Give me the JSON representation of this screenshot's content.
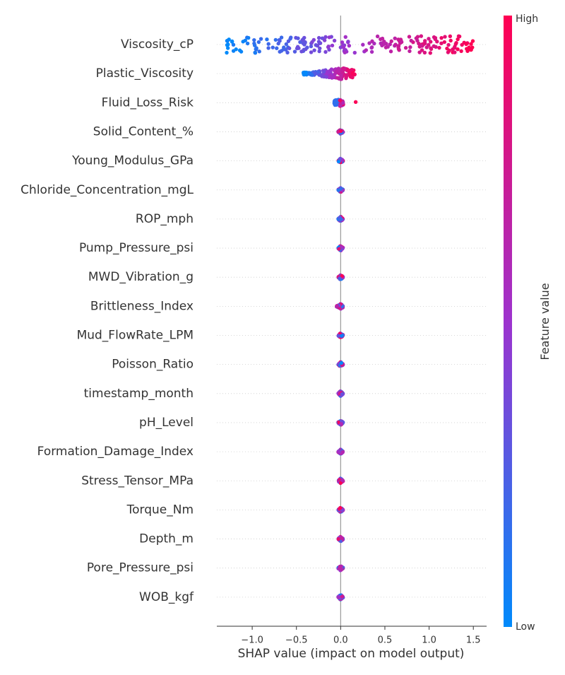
{
  "chart_data": {
    "type": "scatter",
    "subtype": "shap-beeswarm-summary",
    "title": "",
    "xlabel": "SHAP value (impact on model output)",
    "xlim": [
      -1.4,
      1.65
    ],
    "x_ticks": [
      -1.0,
      -0.5,
      0.0,
      0.5,
      1.0,
      1.5
    ],
    "x_tick_labels": [
      "−1.0",
      "−0.5",
      "0.0",
      "0.5",
      "1.0",
      "1.5"
    ],
    "grid": false,
    "zero_line": true,
    "colorbar": {
      "label": "Feature value",
      "high_label": "High",
      "low_label": "Low",
      "low_color": "#008afb",
      "mid_color": "#9d33ce",
      "high_color": "#ff0052",
      "placement": "right"
    },
    "features": [
      {
        "name": "Viscosity_cP",
        "min": -1.3,
        "max": 1.5,
        "spread": 1.0
      },
      {
        "name": "Plastic_Viscosity",
        "min": -0.42,
        "max": 0.18,
        "spread": 0.7
      },
      {
        "name": "Fluid_Loss_Risk",
        "min": -0.09,
        "max": 0.17,
        "spread": 0.45
      },
      {
        "name": "Solid_Content_%",
        "min": -0.03,
        "max": 0.03,
        "spread": 0.3
      },
      {
        "name": "Young_Modulus_GPa",
        "min": -0.03,
        "max": 0.03,
        "spread": 0.3
      },
      {
        "name": "Chloride_Concentration_mgL",
        "min": -0.03,
        "max": 0.03,
        "spread": 0.3
      },
      {
        "name": "ROP_mph",
        "min": -0.03,
        "max": 0.03,
        "spread": 0.3
      },
      {
        "name": "Pump_Pressure_psi",
        "min": -0.03,
        "max": 0.03,
        "spread": 0.3
      },
      {
        "name": "MWD_Vibration_g",
        "min": -0.03,
        "max": 0.03,
        "spread": 0.3
      },
      {
        "name": "Brittleness_Index",
        "min": -0.05,
        "max": 0.03,
        "spread": 0.3
      },
      {
        "name": "Mud_FlowRate_LPM",
        "min": -0.03,
        "max": 0.03,
        "spread": 0.3
      },
      {
        "name": "Poisson_Ratio",
        "min": -0.03,
        "max": 0.03,
        "spread": 0.3
      },
      {
        "name": "timestamp_month",
        "min": -0.03,
        "max": 0.03,
        "spread": 0.3
      },
      {
        "name": "pH_Level",
        "min": -0.03,
        "max": 0.03,
        "spread": 0.3
      },
      {
        "name": "Formation_Damage_Index",
        "min": -0.03,
        "max": 0.03,
        "spread": 0.3
      },
      {
        "name": "Stress_Tensor_MPa",
        "min": -0.03,
        "max": 0.03,
        "spread": 0.3
      },
      {
        "name": "Torque_Nm",
        "min": -0.03,
        "max": 0.03,
        "spread": 0.3
      },
      {
        "name": "Depth_m",
        "min": -0.03,
        "max": 0.03,
        "spread": 0.3
      },
      {
        "name": "Pore_Pressure_psi",
        "min": -0.03,
        "max": 0.03,
        "spread": 0.3
      },
      {
        "name": "WOB_kgf",
        "min": -0.03,
        "max": 0.03,
        "spread": 0.3
      }
    ]
  }
}
